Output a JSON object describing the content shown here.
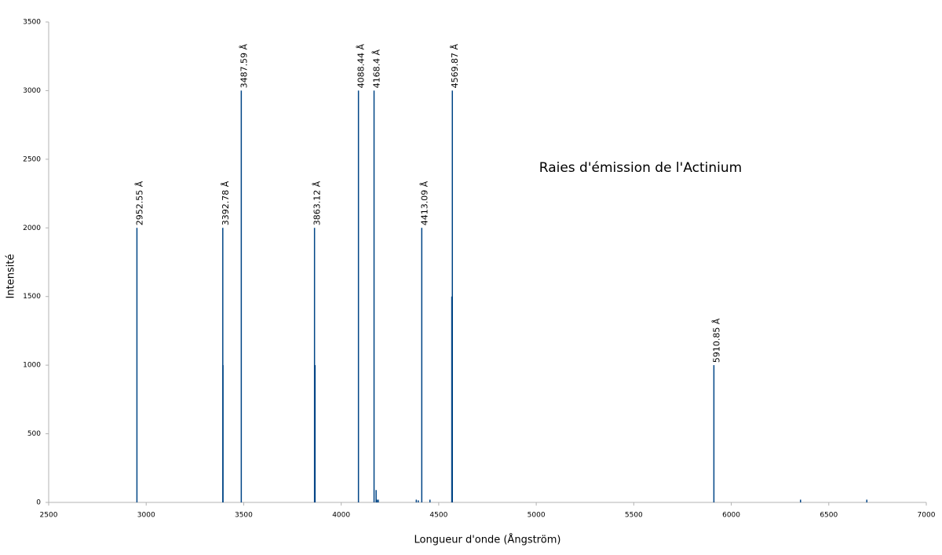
{
  "chart_data": {
    "type": "stem",
    "title": "Raies d'émission de l'Actinium",
    "x_label": "Longueur d'onde (Ångström)",
    "y_label": "Intensité",
    "x": [
      2952.55,
      3392.78,
      3394,
      3487.59,
      3863.12,
      3866,
      4088.44,
      4168.4,
      4179,
      4183,
      4190,
      4385,
      4395,
      4413.09,
      4455,
      4567,
      4569.87,
      5910.85,
      6355,
      6695
    ],
    "values": [
      2000,
      2000,
      1000,
      3000,
      2000,
      1000,
      3000,
      3000,
      90,
      20,
      20,
      20,
      15,
      2000,
      20,
      1500,
      3000,
      1000,
      20,
      20
    ],
    "labels": [
      "2952.55 Å",
      "3392.78 Å",
      null,
      "3487.59 Å",
      "3863.12 Å",
      null,
      "4088.44 Å",
      "4168.4 Å",
      null,
      null,
      null,
      null,
      null,
      "4413.09 Å",
      null,
      null,
      "4569.87 Å",
      "5910.85 Å",
      null,
      null
    ],
    "color": "#004586",
    "xlim": [
      2500,
      7000
    ],
    "xticks": [
      2500,
      3000,
      3500,
      4000,
      4500,
      5000,
      5500,
      6000,
      6500,
      7000
    ],
    "ylim": [
      0,
      3500
    ],
    "yticks": [
      0,
      500,
      1000,
      1500,
      2000,
      2500,
      3000,
      3500
    ]
  }
}
